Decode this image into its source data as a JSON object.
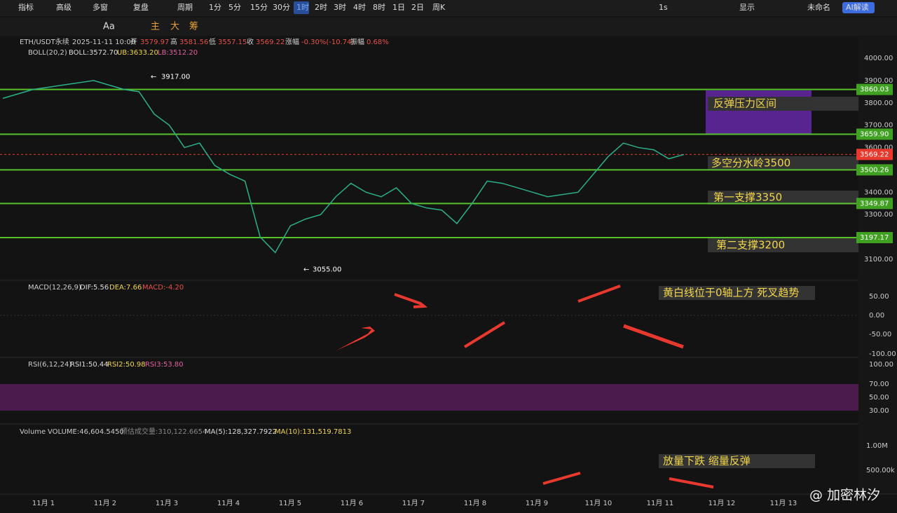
{
  "toolbar": {
    "items": [
      "指标",
      "高级",
      "多窗",
      "复盘",
      "周期",
      "1分",
      "5分",
      "15分",
      "30分",
      "1时",
      "2时",
      "3时",
      "4时",
      "8时",
      "1日",
      "2日",
      "周K"
    ],
    "active": "1时",
    "right": [
      "1s",
      "显示",
      "未命名",
      "AI解读"
    ]
  },
  "drawbar": {
    "items": [
      "Aa",
      "主",
      "大",
      "筹"
    ]
  },
  "info": {
    "symbol": "ETH/USDT永续",
    "datetime": "2025-11-11 10:00",
    "open_label": "开",
    "open": "3579.97",
    "high_label": "高",
    "high": "3581.56",
    "low_label": "低",
    "low": "3557.15",
    "close_label": "收",
    "close": "3569.22",
    "change_label": "涨幅",
    "change": "-0.30%(-10.74)",
    "amp_label": "振幅",
    "amp": "0.68%"
  },
  "boll": {
    "name": "BOLL(20,2)",
    "mid": "BOLL:3572.70",
    "ub": "UB:3633.20",
    "lb": "LB:3512.20"
  },
  "price_axis": [
    {
      "value": 4000,
      "label": "4000.00"
    },
    {
      "value": 3900,
      "label": "3900.00"
    },
    {
      "value": 3800,
      "label": "3800.00"
    },
    {
      "value": 3700,
      "label": "3700.00"
    },
    {
      "value": 3600,
      "label": "3600.00"
    },
    {
      "value": 3400,
      "label": "3400.00"
    },
    {
      "value": 3300,
      "label": "3300.00"
    },
    {
      "value": 3100,
      "label": "3100.00"
    }
  ],
  "levels": [
    {
      "value": 3860.03,
      "label": "3860.03"
    },
    {
      "value": 3659.9,
      "label": "3659.90"
    },
    {
      "value": 3500.26,
      "label": "3500.26"
    },
    {
      "value": 3349.87,
      "label": "3349.87"
    },
    {
      "value": 3197.17,
      "label": "3197.17"
    }
  ],
  "current": {
    "value": 3569.22,
    "label": "3569.22"
  },
  "high_marker": {
    "value": 3917,
    "label": "3917.00"
  },
  "low_marker": {
    "value": 3055,
    "label": "3055.00"
  },
  "price_series": [
    3820,
    3840,
    3860,
    3870,
    3880,
    3890,
    3900,
    3880,
    3860,
    3850,
    3750,
    3700,
    3600,
    3620,
    3520,
    3480,
    3450,
    3200,
    3130,
    3250,
    3280,
    3300,
    3380,
    3440,
    3400,
    3380,
    3420,
    3350,
    3330,
    3320,
    3260,
    3350,
    3450,
    3440,
    3420,
    3400,
    3380,
    3390,
    3400,
    3480,
    3560,
    3620,
    3600,
    3590,
    3550,
    3569
  ],
  "annotations": {
    "resist": "反弹压力区间",
    "pivot": "多空分水岭3500",
    "s1": "第一支撑3350",
    "s2": "第二支撑3200",
    "macd": "黄白线位于0轴上方 死叉趋势",
    "vol": "放量下跌 缩量反弹"
  },
  "macd": {
    "name": "MACD(12,26,9)",
    "dif": "DIF:5.56",
    "dea": "DEA:7.66",
    "macd": "MACD:-4.20",
    "axis": [
      "50.00",
      "0.00",
      "-50.00",
      "-100.00"
    ]
  },
  "rsi": {
    "name": "RSI(6,12,24)",
    "r1": "RSI1:50.44",
    "r2": "RSI2:50.98",
    "r3": "RSI3:53.80",
    "axis": [
      "100.00",
      "70.00",
      "50.00",
      "30.00"
    ]
  },
  "volume": {
    "name": "Volume",
    "vol": "VOLUME:46,604.5450",
    "est": "预估成交量:310,122.6654",
    "ma5": "MA(5):128,327.7922",
    "ma10": "MA(10):131,519.7813",
    "axis": [
      "1.00M",
      "500.00k"
    ]
  },
  "dates": [
    "11月 1",
    "11月 2",
    "11月 3",
    "11月 4",
    "11月 5",
    "11月 6",
    "11月 7",
    "11月 8",
    "11月 9",
    "11月 10",
    "11月 11",
    "11月 12",
    "11月 13"
  ],
  "watermark": "@ 加密林汐"
}
